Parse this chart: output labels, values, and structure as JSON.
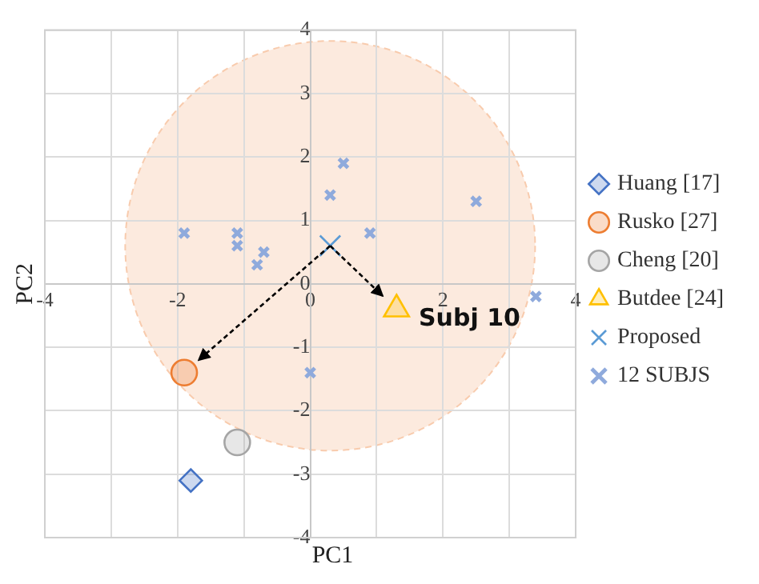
{
  "chart_data": {
    "type": "scatter",
    "xlabel": "PC1",
    "ylabel": "PC2",
    "xlim": [
      -4,
      4
    ],
    "ylim": [
      -4,
      4
    ],
    "xticks": [
      -4,
      {
        "value": -3,
        "label": null
      },
      -2,
      {
        "value": -1,
        "label": null
      },
      0,
      {
        "value": 1,
        "label": null
      },
      2,
      {
        "value": 3,
        "label": null
      },
      4
    ],
    "yticks": [
      -4,
      -3,
      -2,
      -1,
      0,
      1,
      2,
      3,
      4
    ],
    "grid": true,
    "legend": "right",
    "series": [
      {
        "type": "bubble",
        "color": "#fbe5d6",
        "x": [
          0.3
        ],
        "values": [
          0.6
        ],
        "sizes": [
          1
        ]
      },
      {
        "name": "Huang [17]",
        "color": "#4472c4",
        "marker": "diamond",
        "x": [
          -1.8
        ],
        "values": [
          -3.1
        ]
      },
      {
        "name": "Rusko [27]",
        "color": "#ed7d31",
        "marker": "circle",
        "x": [
          -1.9
        ],
        "values": [
          -1.4
        ]
      },
      {
        "name": "Cheng [20]",
        "color": "#a5a5a5",
        "marker": "circle",
        "x": [
          -1.1
        ],
        "values": [
          -2.5
        ]
      },
      {
        "name": "Butdee [24]",
        "color": "#ffc000",
        "marker": "triangle",
        "x": [
          1.3
        ],
        "values": [
          -0.4
        ]
      },
      {
        "name": "Proposed",
        "color": "#5b9bd5",
        "marker": "cross",
        "x": [
          0.3
        ],
        "values": [
          0.6
        ]
      },
      {
        "name": "12 SUBJS",
        "color": "#8faadc",
        "marker": "cross",
        "x": [
          -1.9,
          -1.1,
          -1.1,
          -0.7,
          -0.8,
          0.3,
          0.5,
          0.9,
          2.5,
          3.4,
          0
        ],
        "values": [
          0.8,
          0.8,
          0.6,
          0.5,
          0.3,
          1.4,
          1.9,
          0.8,
          1.3,
          -0.2,
          -1.4
        ]
      }
    ],
    "annotations": [
      "Subj 10"
    ]
  }
}
